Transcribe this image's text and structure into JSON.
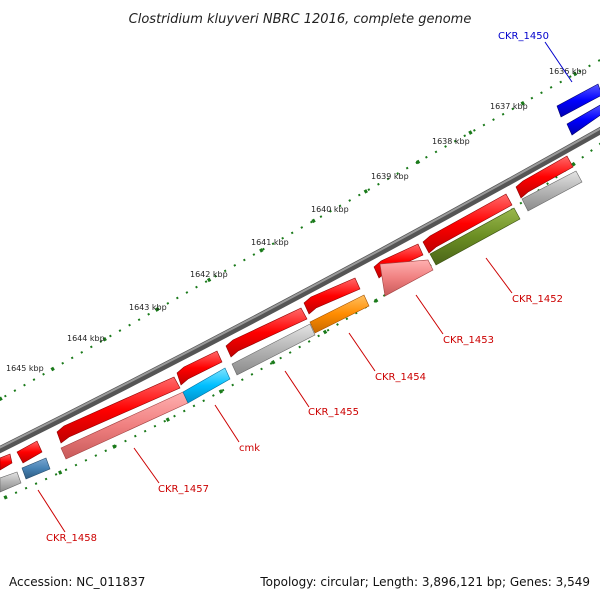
{
  "title": "Clostridium kluyveri NBRC 12016, complete genome",
  "footer": {
    "accession": "Accession: NC_011837",
    "topology": "Topology: circular; Length: 3,896,121 bp; Genes: 3,549"
  },
  "ruler_ticks": [
    "1636 kbp",
    "1637 kbp",
    "1638 kbp",
    "1639 kbp",
    "1640 kbp",
    "1641 kbp",
    "1642 kbp",
    "1643 kbp",
    "1644 kbp",
    "1645 kbp"
  ],
  "genes": [
    {
      "id": "CKR_1450",
      "color": "#0000ff",
      "strand": "outer-pair"
    },
    {
      "id": "CKR_1452",
      "color": "#6b8e23",
      "strand": "inner"
    },
    {
      "id": "CKR_1453",
      "color": "#f08080",
      "strand": "inner"
    },
    {
      "id": "CKR_1454",
      "color": "#ff8c00",
      "strand": "inner"
    },
    {
      "id": "CKR_1455",
      "color": "#a9a9a9",
      "strand": "inner"
    },
    {
      "id": "cmk",
      "color": "#00bfff",
      "strand": "inner"
    },
    {
      "id": "CKR_1457",
      "color": "#f08080",
      "strand": "inner"
    },
    {
      "id": "CKR_1458",
      "color": "#4682b4",
      "strand": "inner"
    }
  ],
  "label_colors": {
    "blue_label": "#0000cc",
    "red_label": "#cc0000"
  }
}
